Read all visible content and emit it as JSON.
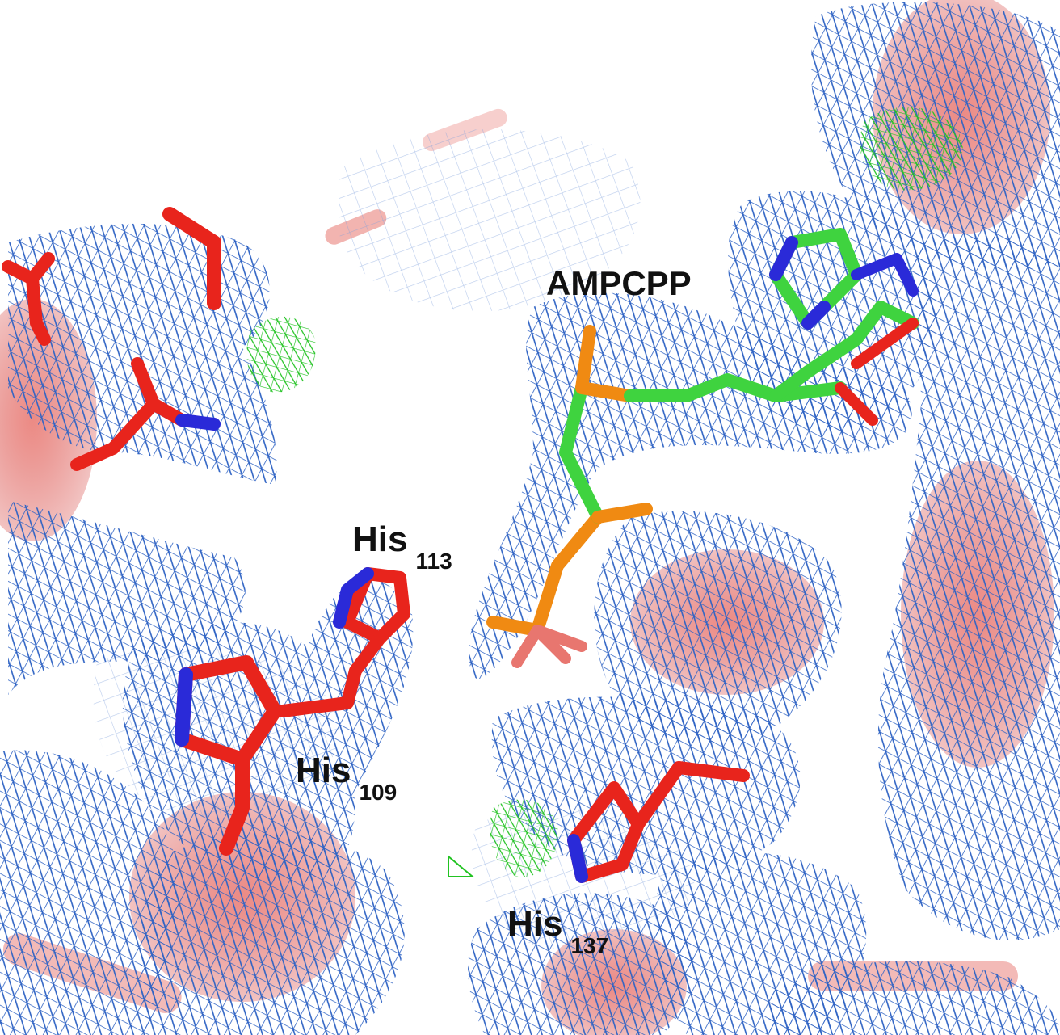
{
  "labels": {
    "ligand": "AMPCPP",
    "his113": {
      "residue": "His",
      "number": "113"
    },
    "his109": {
      "residue": "His",
      "number": "109"
    },
    "his137": {
      "residue": "His",
      "number": "137"
    }
  },
  "colors": {
    "mesh": "#2f63c4",
    "difference_mesh": "#22c322",
    "protein_cartoon": "#e8766f",
    "carbon_protein": "#e8241c",
    "nitrogen": "#2a2ad8",
    "oxygen": "#e8241c",
    "carbon_ligand": "#3fd33f",
    "phosphorus": "#f08a12",
    "background": "#ffffff"
  }
}
